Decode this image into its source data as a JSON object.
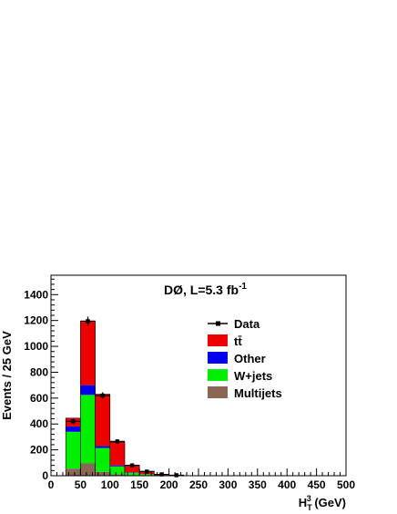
{
  "chart_data": {
    "type": "bar",
    "stacked": true,
    "annotation": {
      "main": "DØ, L=5.3 fb",
      "sup": "-1"
    },
    "ylabel": "Events / 25 GeV",
    "xlabel": {
      "main": "H",
      "sub": "T",
      "sup": "3",
      "unit": " (GeV)"
    },
    "xlim": [
      0,
      500
    ],
    "ylim": [
      0,
      1550
    ],
    "bin_width": 25,
    "x_ticks": [
      "0",
      "50",
      "100",
      "150",
      "200",
      "250",
      "300",
      "350",
      "400",
      "450",
      "500"
    ],
    "y_ticks": [
      "0",
      "200",
      "400",
      "600",
      "800",
      "1000",
      "1200",
      "1400"
    ],
    "bin_edges": [
      25,
      50,
      75,
      100,
      125,
      150,
      175,
      200,
      225
    ],
    "series": [
      {
        "name": "Multijets",
        "color": "#8b6654",
        "values": [
          55,
          95,
          30,
          10,
          3,
          1,
          0,
          0
        ]
      },
      {
        "name": "W+jets",
        "color": "#00ee00",
        "values": [
          285,
          530,
          185,
          62,
          20,
          10,
          3,
          1
        ]
      },
      {
        "name": "Other",
        "color": "#0000ee",
        "values": [
          40,
          75,
          15,
          8,
          3,
          1,
          1,
          0
        ]
      },
      {
        "name": "tt̄",
        "color": "#ee0000",
        "values": [
          65,
          495,
          400,
          180,
          55,
          23,
          8,
          4
        ]
      }
    ],
    "data_series": {
      "name": "Data",
      "x": [
        37.5,
        62.5,
        87.5,
        112.5,
        137.5,
        162.5,
        187.5,
        212.5
      ],
      "y": [
        420,
        1195,
        620,
        265,
        80,
        32,
        10,
        4
      ],
      "yerr": [
        20,
        35,
        25,
        16,
        9,
        6,
        3,
        2
      ]
    },
    "legend": {
      "position": "upper-right",
      "entries": [
        {
          "label": "Data",
          "symbol": "marker",
          "color": "#000000"
        },
        {
          "label": "tt̄",
          "symbol": "box",
          "color": "#ee0000"
        },
        {
          "label": "Other",
          "symbol": "box",
          "color": "#0000ee"
        },
        {
          "label": "W+jets",
          "symbol": "box",
          "color": "#00ee00"
        },
        {
          "label": "Multijets",
          "symbol": "box",
          "color": "#8b6654"
        }
      ]
    },
    "grid": false
  }
}
